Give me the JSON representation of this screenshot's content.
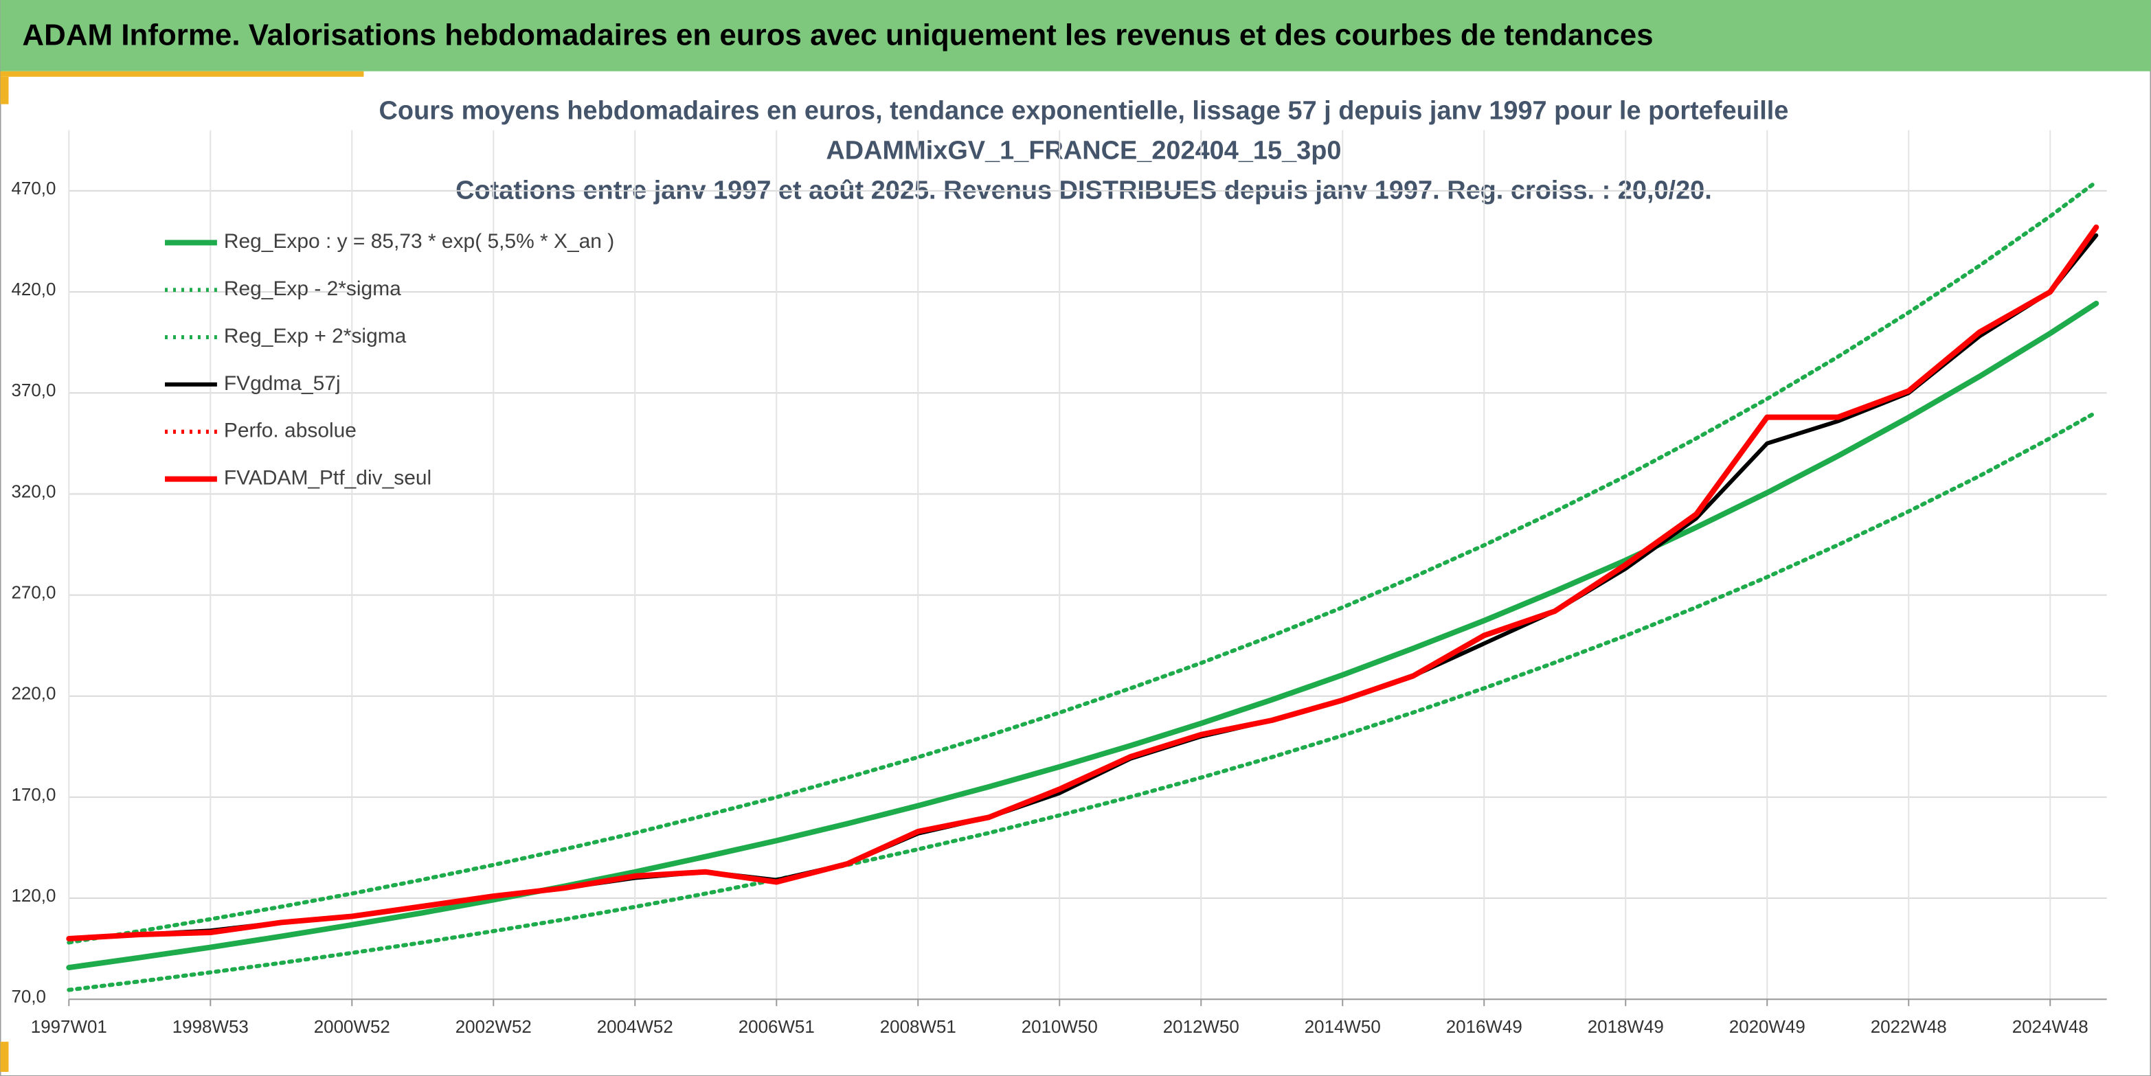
{
  "header": {
    "title": "ADAM Informe. Valorisations hebdomadaires en euros avec uniquement les revenus et des courbes de tendances"
  },
  "chart_data": {
    "type": "line",
    "title": [
      "Cours moyens hebdomadaires en euros, tendance exponentielle, lissage 57 j depuis janv 1997 pour le portefeuille",
      "ADAMMixGV_1_FRANCE_202404_15_3p0",
      "Cotations entre janv 1997 et août 2025. Revenus DISTRIBUES depuis janv 1997. Reg. croiss. : 20,0/20."
    ],
    "x": [
      1997,
      1998,
      1999,
      2000,
      2001,
      2002,
      2003,
      2004,
      2005,
      2006,
      2007,
      2008,
      2009,
      2010,
      2011,
      2012,
      2013,
      2014,
      2015,
      2016,
      2017,
      2018,
      2019,
      2020,
      2021,
      2022,
      2023,
      2024,
      2025,
      2025.65
    ],
    "xlim": [
      1997,
      2025.8
    ],
    "xticks": [
      {
        "value": 1997,
        "label": "1997W01"
      },
      {
        "value": 1999,
        "label": "1998W53"
      },
      {
        "value": 2001,
        "label": "2000W52"
      },
      {
        "value": 2003,
        "label": "2002W52"
      },
      {
        "value": 2005,
        "label": "2004W52"
      },
      {
        "value": 2007,
        "label": "2006W51"
      },
      {
        "value": 2009,
        "label": "2008W51"
      },
      {
        "value": 2011,
        "label": "2010W50"
      },
      {
        "value": 2013,
        "label": "2012W50"
      },
      {
        "value": 2015,
        "label": "2014W50"
      },
      {
        "value": 2017,
        "label": "2016W49"
      },
      {
        "value": 2019,
        "label": "2018W49"
      },
      {
        "value": 2021,
        "label": "2020W49"
      },
      {
        "value": 2023,
        "label": "2022W48"
      },
      {
        "value": 2025,
        "label": "2024W48"
      }
    ],
    "ylim": [
      70,
      500
    ],
    "yticks": [
      {
        "value": 70,
        "label": "70,0"
      },
      {
        "value": 120,
        "label": "120,0"
      },
      {
        "value": 170,
        "label": "170,0"
      },
      {
        "value": 220,
        "label": "220,0"
      },
      {
        "value": 270,
        "label": "270,0"
      },
      {
        "value": 320,
        "label": "320,0"
      },
      {
        "value": 370,
        "label": "370,0"
      },
      {
        "value": 420,
        "label": "420,0"
      },
      {
        "value": 470,
        "label": "470,0"
      }
    ],
    "grid": true,
    "legend": "top-left",
    "series": [
      {
        "name": "Reg_Expo : y = 85,73 * exp( 5,5% *  X_an )",
        "color": "#1eab4b",
        "style": "solid",
        "values": [
          85.7,
          90.6,
          95.7,
          101.1,
          106.8,
          112.8,
          119.2,
          125.9,
          133.0,
          140.6,
          148.5,
          156.9,
          165.8,
          175.1,
          185.0,
          195.5,
          206.5,
          218.2,
          230.5,
          243.6,
          257.3,
          271.9,
          287.2,
          303.5,
          320.6,
          338.8,
          357.9,
          378.1,
          399.5,
          414.3
        ]
      },
      {
        "name": "Reg_Exp - 2*sigma",
        "color": "#1eab4b",
        "style": "dotted",
        "values": [
          74.6,
          78.8,
          83.3,
          88.0,
          92.9,
          98.1,
          103.7,
          109.5,
          115.7,
          122.3,
          129.2,
          136.5,
          144.2,
          152.3,
          161.0,
          170.1,
          179.7,
          189.8,
          200.5,
          211.9,
          223.9,
          236.6,
          249.9,
          264.0,
          278.9,
          294.8,
          311.4,
          328.9,
          347.6,
          360.4
        ]
      },
      {
        "name": "Reg_Exp + 2*sigma",
        "color": "#1eab4b",
        "style": "dotted",
        "values": [
          98.1,
          103.7,
          109.6,
          115.8,
          122.3,
          129.2,
          136.5,
          144.2,
          152.3,
          161.0,
          170.0,
          179.7,
          189.8,
          200.5,
          211.8,
          223.8,
          236.4,
          249.8,
          263.9,
          278.9,
          294.6,
          311.3,
          328.8,
          347.5,
          367.1,
          387.9,
          409.8,
          432.9,
          457.4,
          474.4
        ]
      },
      {
        "name": "FVgdma_57j",
        "color": "#000000",
        "style": "solid",
        "values": [
          100,
          102,
          104,
          108,
          111,
          116,
          121,
          125,
          130,
          133,
          129,
          137,
          152,
          160,
          172,
          189,
          200,
          208,
          218,
          230,
          246,
          262,
          283,
          308,
          345,
          356,
          370,
          398,
          420,
          448
        ]
      },
      {
        "name": "Perfo. absolue",
        "color": "#ff0000",
        "style": "dotted",
        "values": [
          null,
          null,
          null,
          null,
          null,
          null,
          null,
          null,
          null,
          null,
          null,
          null,
          null,
          null,
          null,
          null,
          null,
          null,
          null,
          null,
          null,
          null,
          null,
          null,
          null,
          null,
          null,
          null,
          null,
          null
        ]
      },
      {
        "name": "FVADAM_Ptf_div_seul",
        "color": "#ff0000",
        "style": "thick",
        "values": [
          100,
          102,
          103,
          108,
          111,
          116,
          121,
          125,
          131,
          133,
          128,
          137,
          153,
          160,
          174,
          190,
          201,
          208,
          218,
          230,
          250,
          262,
          285,
          310,
          358,
          358,
          371,
          400,
          420,
          452
        ]
      }
    ]
  }
}
